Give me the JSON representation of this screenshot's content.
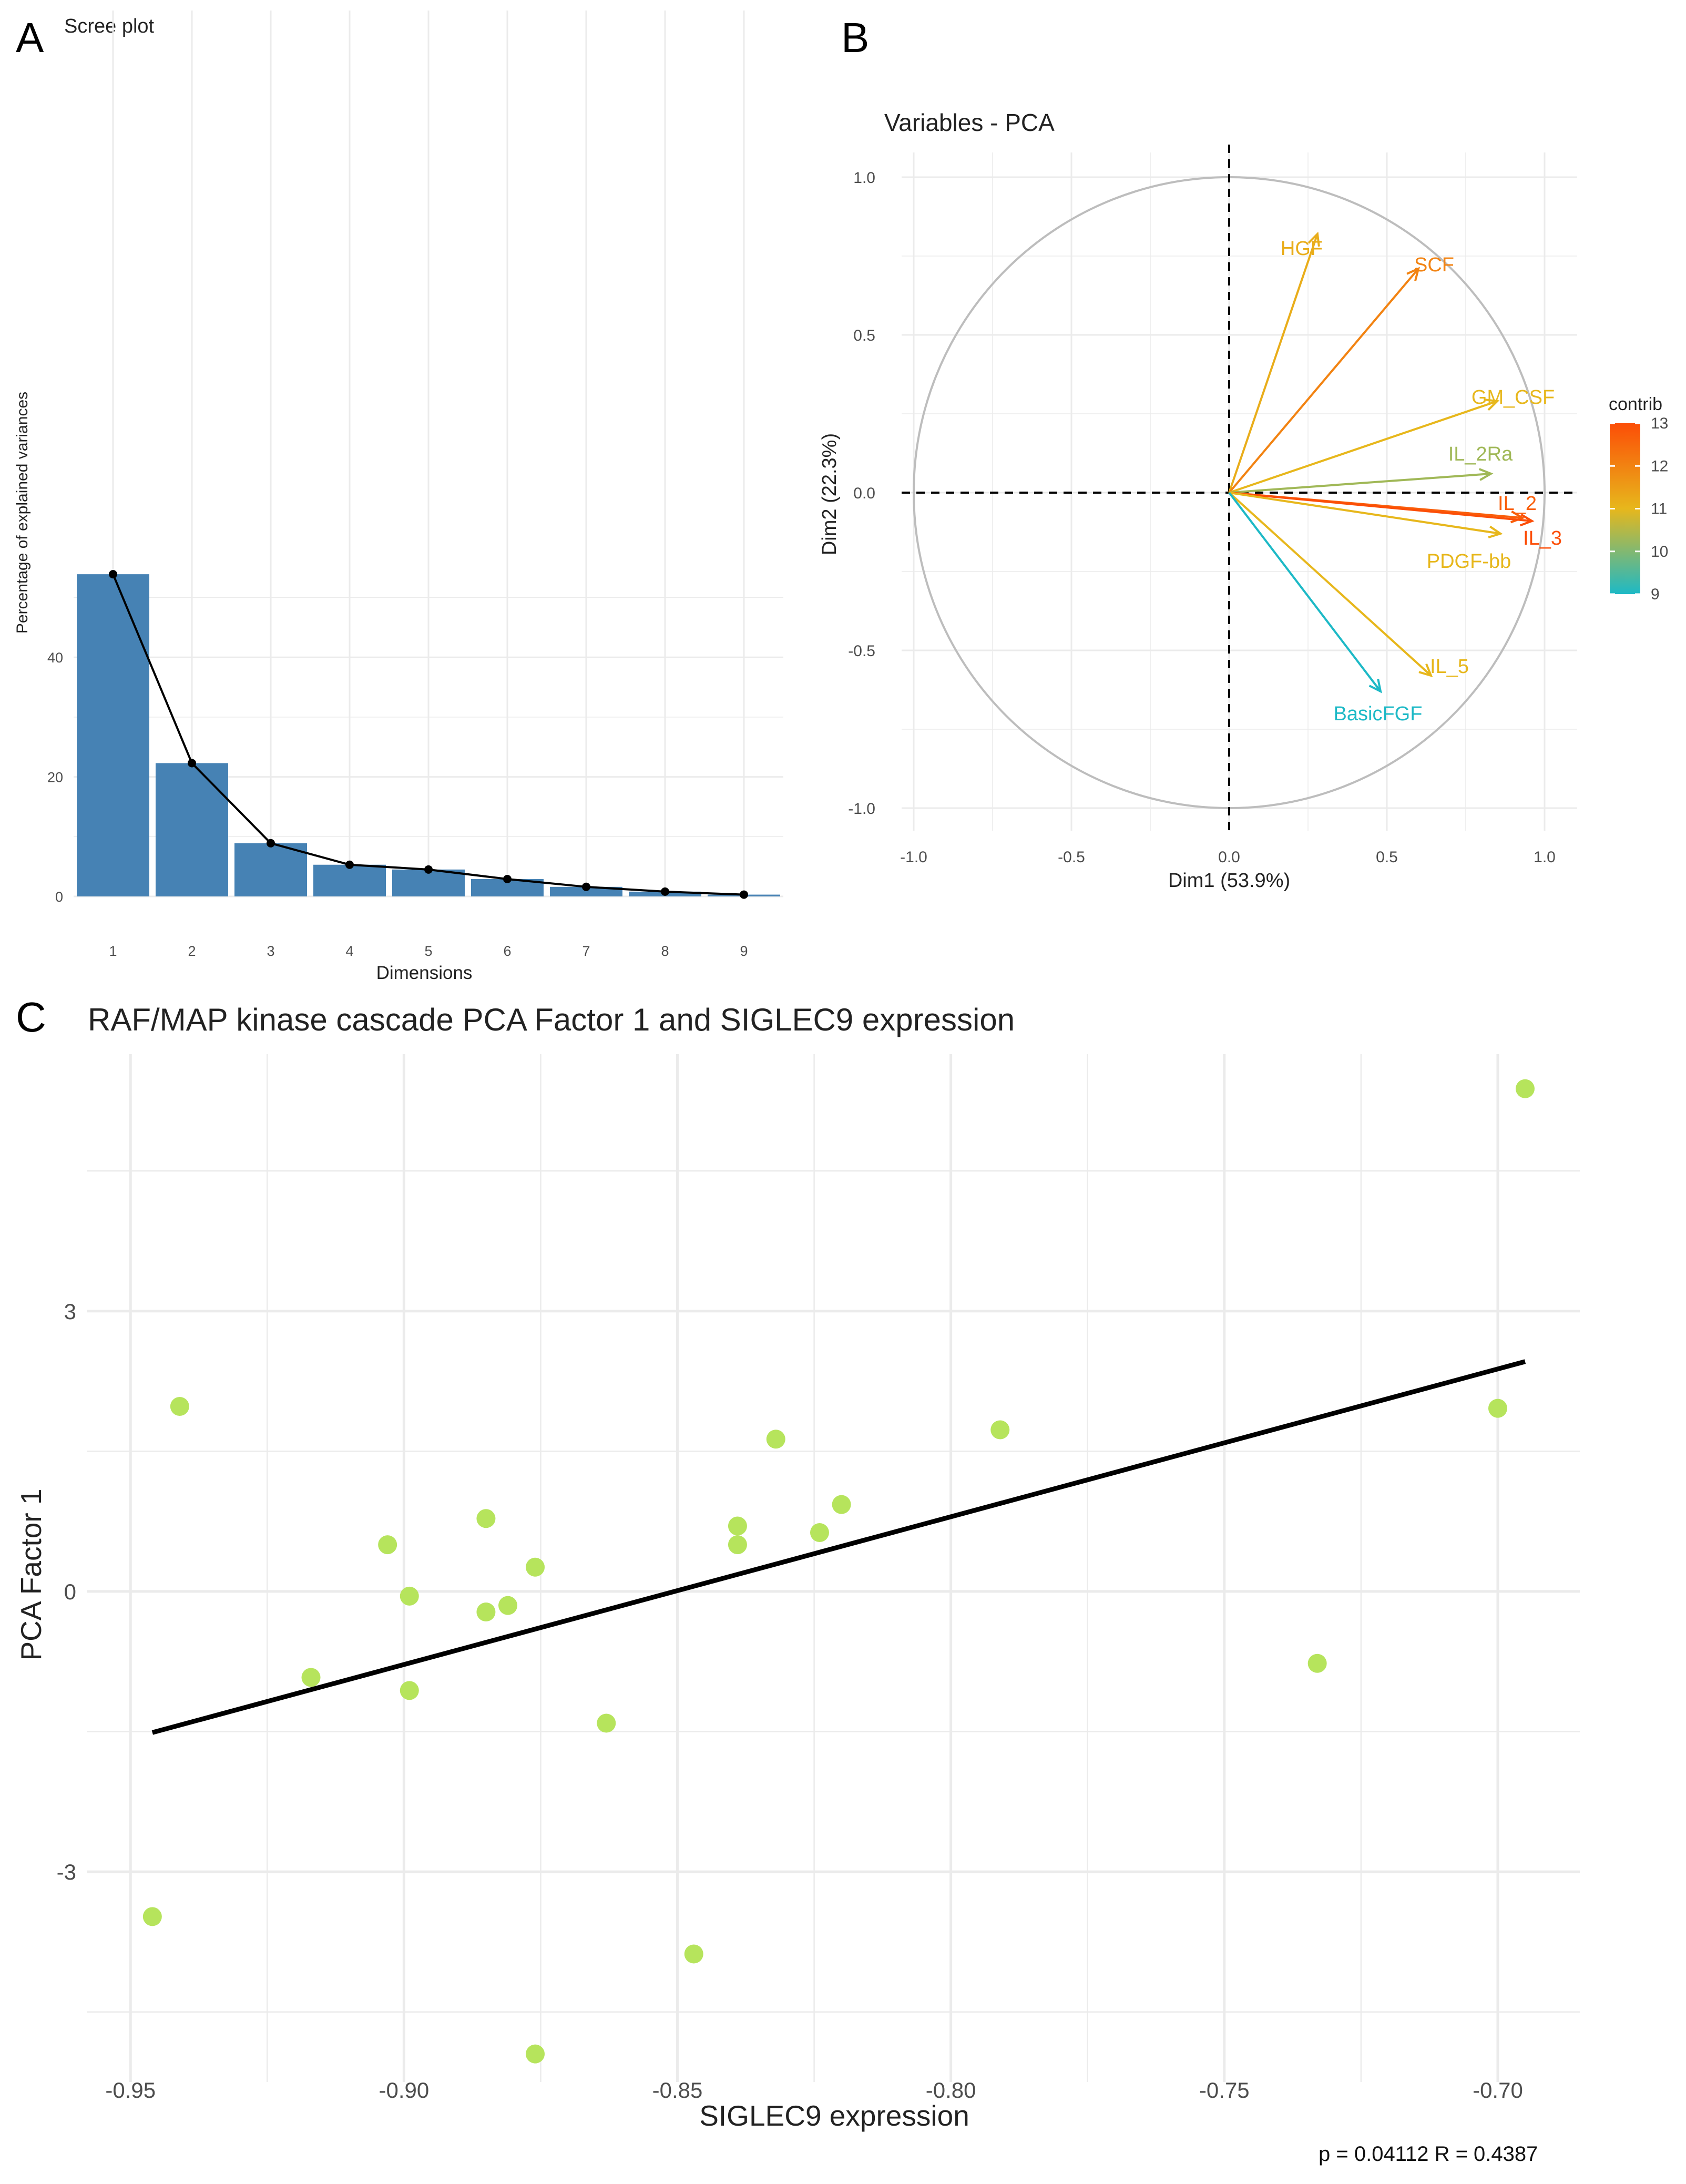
{
  "panels": {
    "a": "A",
    "b": "B",
    "c": "C"
  },
  "colors": {
    "bar": "#4682B4",
    "grid": "#EBEBEB",
    "point": "#B6E45C",
    "contrib_low": "#1DB9C6",
    "contrib_mid": "#E7B71C",
    "contrib_high": "#FC4E07",
    "circle": "#BDBDBD"
  },
  "stats_text": "p = 0.04112   R = 0.4387",
  "chart_data": [
    {
      "type": "bar",
      "title": "Scree plot",
      "xlabel": "Dimensions",
      "ylabel": "Percentage of explained variances",
      "categories": [
        "1",
        "2",
        "3",
        "4",
        "5",
        "6",
        "7",
        "8",
        "9"
      ],
      "values": [
        53.9,
        22.3,
        8.9,
        5.3,
        4.5,
        2.9,
        1.6,
        0.8,
        0.3
      ],
      "line_overlay": true,
      "ylim": [
        0,
        54
      ],
      "yticks": [
        0,
        20,
        40
      ],
      "grid": true
    },
    {
      "type": "scatter",
      "subtype": "pca-variable-arrows",
      "title": "Variables - PCA",
      "xlabel": "Dim1 (53.9%)",
      "ylabel": "Dim2 (22.3%)",
      "xlim": [
        -1.0,
        1.0
      ],
      "ylim": [
        -1.0,
        1.0
      ],
      "xticks": [
        "-1.0",
        "-0.5",
        "0.0",
        "0.5",
        "1.0"
      ],
      "yticks": [
        "1.0",
        "0.5",
        "0.0",
        "-0.5",
        "-1.0"
      ],
      "legend": {
        "title": "contrib",
        "ticks": [
          13,
          12,
          11,
          10,
          9
        ],
        "range": [
          9,
          13
        ],
        "placement": "right"
      },
      "variables": [
        {
          "name": "HGF",
          "x": 0.28,
          "y": 0.82,
          "contrib": 11.2
        },
        {
          "name": "SCF",
          "x": 0.6,
          "y": 0.71,
          "contrib": 12.0
        },
        {
          "name": "GM_CSF",
          "x": 0.85,
          "y": 0.29,
          "contrib": 11.0
        },
        {
          "name": "IL_2Ra",
          "x": 0.83,
          "y": 0.06,
          "contrib": 10.3
        },
        {
          "name": "IL_2",
          "x": 0.93,
          "y": -0.08,
          "contrib": 12.7
        },
        {
          "name": "IL_3",
          "x": 0.96,
          "y": -0.09,
          "contrib": 13.0
        },
        {
          "name": "PDGF-bb",
          "x": 0.86,
          "y": -0.13,
          "contrib": 11.0
        },
        {
          "name": "IL_5",
          "x": 0.64,
          "y": -0.58,
          "contrib": 11.0
        },
        {
          "name": "BasicFGF",
          "x": 0.48,
          "y": -0.63,
          "contrib": 9.0
        }
      ]
    },
    {
      "type": "scatter",
      "title": "RAF/MAP kinase cascade PCA Factor 1 and SIGLEC9 expression",
      "xlabel": "SIGLEC9 expression",
      "ylabel": "PCA Factor 1",
      "xlim": [
        -0.958,
        -0.685
      ],
      "ylim": [
        -5.25,
        5.75
      ],
      "xticks": [
        "-0.95",
        "-0.90",
        "-0.85",
        "-0.80",
        "-0.75",
        "-0.70"
      ],
      "yticks": [
        "3",
        "0",
        "-3"
      ],
      "points": [
        {
          "x": -0.946,
          "y": -3.48
        },
        {
          "x": -0.941,
          "y": 1.98
        },
        {
          "x": -0.917,
          "y": -0.92
        },
        {
          "x": -0.903,
          "y": 0.5
        },
        {
          "x": -0.899,
          "y": -0.05
        },
        {
          "x": -0.899,
          "y": -1.06
        },
        {
          "x": -0.885,
          "y": 0.78
        },
        {
          "x": -0.885,
          "y": -0.22
        },
        {
          "x": -0.881,
          "y": -0.15
        },
        {
          "x": -0.876,
          "y": 0.26
        },
        {
          "x": -0.876,
          "y": -4.95
        },
        {
          "x": -0.863,
          "y": -1.41
        },
        {
          "x": -0.847,
          "y": -3.88
        },
        {
          "x": -0.839,
          "y": 0.7
        },
        {
          "x": -0.839,
          "y": 0.5
        },
        {
          "x": -0.832,
          "y": 1.63
        },
        {
          "x": -0.824,
          "y": 0.63
        },
        {
          "x": -0.82,
          "y": 0.93
        },
        {
          "x": -0.791,
          "y": 1.73
        },
        {
          "x": -0.733,
          "y": -0.77
        },
        {
          "x": -0.7,
          "y": 1.96
        },
        {
          "x": -0.695,
          "y": 5.38
        }
      ],
      "fit_line": {
        "x": [
          -0.946,
          -0.695
        ],
        "y": [
          -1.51,
          2.46
        ]
      },
      "grid": true
    }
  ]
}
